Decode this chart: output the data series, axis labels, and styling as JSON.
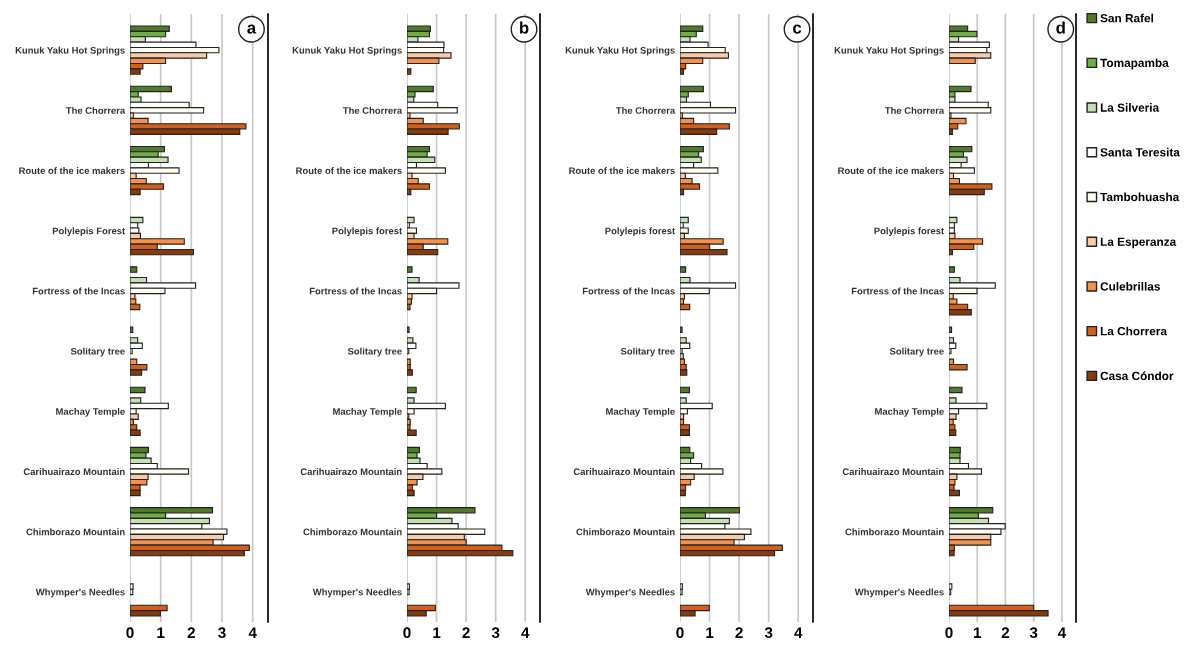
{
  "chart_data": [
    {
      "type": "bar",
      "orientation": "horizontal",
      "categories": [
        "Kunuk Yaku Hot Springs",
        "The Chorrera",
        "Route of the ice makers",
        "Polylepis Forest",
        "Fortress of the Incas",
        "Solitary tree",
        "Machay Temple",
        "Carihuairazo Mountain",
        "Chimborazo Mountain",
        "Whymper's Needles"
      ],
      "xlim": [
        0,
        4.5
      ],
      "xticks": [
        0,
        1,
        2,
        3,
        4
      ],
      "grid": "x",
      "legend": "right",
      "annotations": [
        "a"
      ],
      "series": [
        {
          "name": "San Rafel",
          "color": "#4e7a2a",
          "values": [
            1.28,
            1.35,
            1.12,
            null,
            0.22,
            0.09,
            0.49,
            0.6,
            2.69,
            null
          ]
        },
        {
          "name": "Tomapamba",
          "color": "#70ad47",
          "values": [
            1.16,
            0.27,
            0.92,
            null,
            null,
            null,
            null,
            0.52,
            1.16,
            null
          ]
        },
        {
          "name": "La Silveria",
          "color": "#c5e0b4",
          "values": [
            0.5,
            0.36,
            1.24,
            0.42,
            0.54,
            0.25,
            0.35,
            0.69,
            2.59,
            null
          ]
        },
        {
          "name": "Santa Teresita",
          "color": "#ffffff",
          "values": [
            2.15,
            1.93,
            0.6,
            0.25,
            2.14,
            0.4,
            1.25,
            0.89,
            2.34,
            0.1
          ]
        },
        {
          "name": "Tambohuasha",
          "color": "#fffdf2",
          "values": [
            2.9,
            2.4,
            1.6,
            0.29,
            1.14,
            0.07,
            0.2,
            1.91,
            3.16,
            0.09
          ]
        },
        {
          "name": "La Esperanza",
          "color": "#f8cbad",
          "values": [
            2.5,
            0.11,
            0.2,
            0.34,
            0.16,
            null,
            0.27,
            0.59,
            3.05,
            null
          ]
        },
        {
          "name": "Culebrillas",
          "color": "#f4914b",
          "values": [
            1.16,
            0.59,
            0.53,
            1.77,
            0.19,
            0.22,
            0.11,
            0.55,
            2.71,
            null
          ]
        },
        {
          "name": "La Chorrera",
          "color": "#d2601a",
          "values": [
            0.42,
            3.78,
            1.09,
            0.89,
            0.32,
            0.55,
            0.22,
            0.33,
            3.89,
            1.21
          ]
        },
        {
          "name": "Casa Cóndor",
          "color": "#843c0c",
          "values": [
            0.33,
            3.58,
            0.33,
            2.07,
            null,
            0.38,
            0.33,
            0.33,
            3.73,
            0.99
          ]
        }
      ]
    },
    {
      "type": "bar",
      "orientation": "horizontal",
      "categories": [
        "Kunuk Yaku Hot Springs",
        "The Chorrera",
        "Route of the ice makers",
        "Polylepis forest",
        "Fortress of the Incas",
        "Solitary tree",
        "Machay Temple",
        "Carihuairazo Mountain",
        "Chimborazo Mountain",
        "Whymper's Needles"
      ],
      "xlim": [
        0,
        4.5
      ],
      "xticks": [
        0,
        1,
        2,
        3,
        4
      ],
      "grid": "x",
      "annotations": [
        "b"
      ],
      "series": [
        {
          "color": "#4e7a2a",
          "values": [
            0.79,
            0.89,
            0.76,
            null,
            0.17,
            0.07,
            0.31,
            0.42,
            2.3,
            null
          ]
        },
        {
          "color": "#70ad47",
          "values": [
            0.76,
            0.27,
            0.68,
            null,
            null,
            null,
            null,
            0.34,
            1.0,
            null
          ]
        },
        {
          "color": "#c5e0b4",
          "values": [
            0.37,
            0.23,
            0.94,
            0.24,
            0.41,
            0.2,
            0.24,
            0.44,
            1.52,
            null
          ]
        },
        {
          "color": "#ffffff",
          "values": [
            1.25,
            1.04,
            0.32,
            0.08,
            1.76,
            0.3,
            1.3,
            0.68,
            1.73,
            0.08
          ]
        },
        {
          "color": "#fffdf2",
          "values": [
            1.24,
            1.7,
            1.3,
            0.32,
            1.0,
            0.06,
            0.24,
            1.18,
            2.63,
            0.07
          ]
        },
        {
          "color": "#f8cbad",
          "values": [
            1.49,
            0.1,
            0.17,
            0.24,
            0.17,
            null,
            0.06,
            0.54,
            1.94,
            null
          ]
        },
        {
          "color": "#f4914b",
          "values": [
            1.08,
            0.55,
            0.38,
            1.38,
            0.15,
            0.11,
            0.11,
            0.34,
            2.0,
            null
          ]
        },
        {
          "color": "#d2601a",
          "values": [
            null,
            1.77,
            0.76,
            0.55,
            0.1,
            0.11,
            0.1,
            0.18,
            3.21,
            0.96
          ]
        },
        {
          "color": "#843c0c",
          "values": [
            0.13,
            1.39,
            0.13,
            1.04,
            null,
            0.18,
            0.31,
            0.24,
            3.58,
            0.65
          ]
        }
      ]
    },
    {
      "type": "bar",
      "orientation": "horizontal",
      "categories": [
        "Kunuk Yaku Hot Springs",
        "The Chorrera",
        "Route of the ice makers",
        "Polylepis forest",
        "Fortress of the Incas",
        "Solitary tree",
        "Machay Temple",
        "Carihuairazo Mountain",
        "Chimborazo Mountain",
        "Whymper's Needles"
      ],
      "xlim": [
        0,
        4.5
      ],
      "xticks": [
        0,
        1,
        2,
        3,
        4
      ],
      "grid": "x",
      "annotations": [
        "c"
      ],
      "series": [
        {
          "color": "#4e7a2a",
          "values": [
            0.77,
            0.79,
            0.79,
            null,
            0.19,
            0.07,
            0.32,
            0.33,
            2.01,
            null
          ]
        },
        {
          "color": "#70ad47",
          "values": [
            0.55,
            0.28,
            0.63,
            null,
            null,
            null,
            null,
            0.46,
            0.86,
            null
          ]
        },
        {
          "color": "#c5e0b4",
          "values": [
            0.34,
            0.22,
            0.72,
            0.28,
            0.34,
            0.21,
            0.21,
            0.36,
            1.67,
            null
          ]
        },
        {
          "color": "#ffffff",
          "values": [
            0.95,
            1.03,
            0.46,
            0.11,
            1.88,
            0.33,
            1.09,
            0.73,
            1.52,
            0.08
          ]
        },
        {
          "color": "#fffdf2",
          "values": [
            1.53,
            1.88,
            1.28,
            0.28,
            0.99,
            0.07,
            0.25,
            1.45,
            2.4,
            0.07
          ]
        },
        {
          "color": "#f8cbad",
          "values": [
            1.64,
            0.08,
            0.18,
            0.15,
            0.15,
            0.11,
            0.12,
            0.48,
            2.18,
            null
          ]
        },
        {
          "color": "#f4914b",
          "values": [
            0.77,
            0.46,
            0.41,
            1.46,
            0.12,
            0.15,
            0.12,
            0.36,
            1.83,
            null
          ]
        },
        {
          "color": "#d2601a",
          "values": [
            0.19,
            1.67,
            0.66,
            1.0,
            0.33,
            0.21,
            0.32,
            0.19,
            3.46,
            0.99
          ]
        },
        {
          "color": "#843c0c",
          "values": [
            0.12,
            1.24,
            0.12,
            1.59,
            null,
            0.23,
            0.32,
            0.18,
            3.2,
            0.51
          ]
        }
      ]
    },
    {
      "type": "bar",
      "orientation": "horizontal",
      "categories": [
        "Kunuk Yaku Hot Springs",
        "The Chorrera",
        "Route of the ice makers",
        "Polylepis forest",
        "Fortress of the Incas",
        "Solitary tree",
        "Machay Temple",
        "Carihuairazo Mountain",
        "Chimborazo Mountain",
        "Whymper's Needles"
      ],
      "xlim": [
        0,
        4.5
      ],
      "xticks": [
        0,
        1,
        2,
        3,
        4
      ],
      "grid": "x",
      "annotations": [
        "d"
      ],
      "series": [
        {
          "color": "#4e7a2a",
          "values": [
            0.66,
            0.78,
            0.81,
            null,
            0.19,
            0.09,
            0.46,
            0.4,
            1.55,
            null
          ]
        },
        {
          "color": "#70ad47",
          "values": [
            0.99,
            0.21,
            0.51,
            null,
            null,
            null,
            null,
            0.39,
            1.04,
            null
          ]
        },
        {
          "color": "#c5e0b4",
          "values": [
            0.34,
            0.21,
            0.64,
            0.28,
            0.39,
            0.16,
            0.25,
            0.39,
            1.4,
            null
          ]
        },
        {
          "color": "#ffffff",
          "values": [
            1.43,
            1.39,
            0.43,
            0.19,
            1.64,
            0.24,
            1.34,
            0.69,
            1.99,
            0.1
          ]
        },
        {
          "color": "#fffdf2",
          "values": [
            1.34,
            1.48,
            0.9,
            0.19,
            0.99,
            0.07,
            0.34,
            1.15,
            1.84,
            0.06
          ]
        },
        {
          "color": "#f8cbad",
          "values": [
            1.48,
            0.07,
            0.16,
            0.21,
            0.15,
            null,
            0.25,
            0.28,
            1.48,
            null
          ]
        },
        {
          "color": "#f4914b",
          "values": [
            0.93,
            0.6,
            0.37,
            1.19,
            0.28,
            0.16,
            0.15,
            0.21,
            1.48,
            null
          ]
        },
        {
          "color": "#d2601a",
          "values": [
            null,
            0.31,
            1.52,
            0.88,
            0.66,
            0.64,
            0.21,
            0.18,
            0.19,
            3.0
          ]
        },
        {
          "color": "#843c0c",
          "values": [
            null,
            0.12,
            1.25,
            0.12,
            0.79,
            null,
            0.24,
            0.37,
            0.18,
            3.51
          ]
        }
      ]
    }
  ]
}
